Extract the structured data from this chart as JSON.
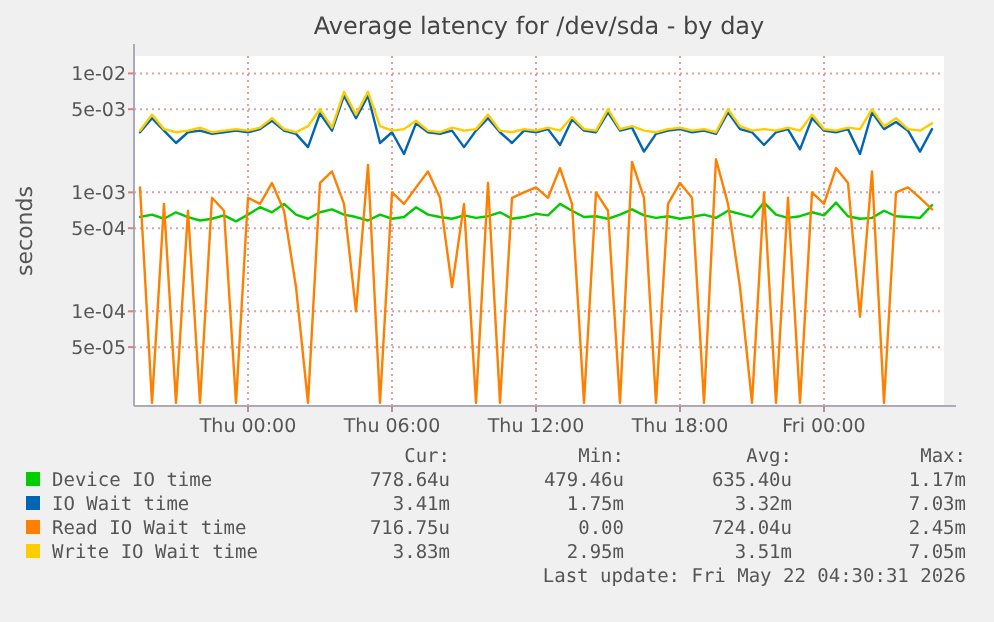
{
  "chart_data": {
    "type": "line",
    "title": "Average latency for /dev/sda - by day",
    "ylabel": "seconds",
    "log": "y",
    "grid": true,
    "legend": "bottom",
    "xlim": [
      "2026-05-20T19:15",
      "2026-05-22T05:00"
    ],
    "xticks": [
      {
        "value": "2026-05-21T00:00",
        "label": "Thu 00:00"
      },
      {
        "value": "2026-05-21T06:00",
        "label": "Thu 06:00"
      },
      {
        "value": "2026-05-21T12:00",
        "label": "Thu 12:00"
      },
      {
        "value": "2026-05-21T18:00",
        "label": "Thu 18:00"
      },
      {
        "value": "2026-05-22T00:00",
        "label": "Fri 00:00"
      }
    ],
    "ylim": [
      1.6e-05,
      0.014
    ],
    "yticks": [
      {
        "value": 5e-05,
        "label": "5e-05"
      },
      {
        "value": 0.0001,
        "label": "1e-04"
      },
      {
        "value": 0.0005,
        "label": "5e-04"
      },
      {
        "value": 0.001,
        "label": "1e-03"
      },
      {
        "value": 0.005,
        "label": "5e-03"
      },
      {
        "value": 0.01,
        "label": "1e-02"
      }
    ],
    "x": [
      "2026-05-20T19:30",
      "2026-05-20T20:00",
      "2026-05-20T20:30",
      "2026-05-20T21:00",
      "2026-05-20T21:30",
      "2026-05-20T22:00",
      "2026-05-20T22:30",
      "2026-05-20T23:00",
      "2026-05-20T23:30",
      "2026-05-21T00:00",
      "2026-05-21T00:30",
      "2026-05-21T01:00",
      "2026-05-21T01:30",
      "2026-05-21T02:00",
      "2026-05-21T02:30",
      "2026-05-21T03:00",
      "2026-05-21T03:30",
      "2026-05-21T04:00",
      "2026-05-21T04:30",
      "2026-05-21T05:00",
      "2026-05-21T05:30",
      "2026-05-21T06:00",
      "2026-05-21T06:30",
      "2026-05-21T07:00",
      "2026-05-21T07:30",
      "2026-05-21T08:00",
      "2026-05-21T08:30",
      "2026-05-21T09:00",
      "2026-05-21T09:30",
      "2026-05-21T10:00",
      "2026-05-21T10:30",
      "2026-05-21T11:00",
      "2026-05-21T11:30",
      "2026-05-21T12:00",
      "2026-05-21T12:30",
      "2026-05-21T13:00",
      "2026-05-21T13:30",
      "2026-05-21T14:00",
      "2026-05-21T14:30",
      "2026-05-21T15:00",
      "2026-05-21T15:30",
      "2026-05-21T16:00",
      "2026-05-21T16:30",
      "2026-05-21T17:00",
      "2026-05-21T17:30",
      "2026-05-21T18:00",
      "2026-05-21T18:30",
      "2026-05-21T19:00",
      "2026-05-21T19:30",
      "2026-05-21T20:00",
      "2026-05-21T20:30",
      "2026-05-21T21:00",
      "2026-05-21T21:30",
      "2026-05-21T22:00",
      "2026-05-21T22:30",
      "2026-05-21T23:00",
      "2026-05-21T23:30",
      "2026-05-22T00:00",
      "2026-05-22T00:30",
      "2026-05-22T01:00",
      "2026-05-22T01:30",
      "2026-05-22T02:00",
      "2026-05-22T02:30",
      "2026-05-22T03:00",
      "2026-05-22T03:30",
      "2026-05-22T04:00",
      "2026-05-22T04:30"
    ],
    "series": [
      {
        "name": "Device IO time",
        "color": "#00cc00",
        "values": [
          0.00062,
          0.00065,
          0.0006,
          0.00068,
          0.00062,
          0.00058,
          0.0006,
          0.00064,
          0.00057,
          0.00065,
          0.00075,
          0.00068,
          0.0008,
          0.00065,
          0.0006,
          0.00068,
          0.00072,
          0.00065,
          0.00062,
          0.00058,
          0.00065,
          0.0006,
          0.00062,
          0.00075,
          0.00065,
          0.00062,
          0.0006,
          0.00064,
          0.00061,
          0.00063,
          0.00068,
          0.0006,
          0.00062,
          0.00066,
          0.00064,
          0.0008,
          0.0007,
          0.00062,
          0.00063,
          0.0006,
          0.00065,
          0.00072,
          0.00064,
          0.00061,
          0.00063,
          0.0006,
          0.00062,
          0.00065,
          0.00061,
          0.0007,
          0.00066,
          0.00062,
          0.00082,
          0.00065,
          0.00061,
          0.00063,
          0.00068,
          0.00064,
          0.00082,
          0.00063,
          0.0006,
          0.00061,
          0.0007,
          0.00063,
          0.00062,
          0.00061,
          0.00078
        ]
      },
      {
        "name": "IO Wait time",
        "color": "#0066b3",
        "values": [
          0.0032,
          0.0042,
          0.0033,
          0.0026,
          0.0032,
          0.0033,
          0.0031,
          0.0032,
          0.0033,
          0.0032,
          0.0034,
          0.004,
          0.0033,
          0.0031,
          0.0024,
          0.0046,
          0.0033,
          0.0065,
          0.0042,
          0.0065,
          0.0026,
          0.0032,
          0.0021,
          0.0038,
          0.0032,
          0.0031,
          0.0033,
          0.0024,
          0.0033,
          0.0042,
          0.0032,
          0.0026,
          0.0033,
          0.0032,
          0.0034,
          0.0025,
          0.0041,
          0.0033,
          0.0032,
          0.0047,
          0.0033,
          0.0035,
          0.0022,
          0.0031,
          0.0033,
          0.0034,
          0.0032,
          0.0033,
          0.0031,
          0.0047,
          0.0034,
          0.0032,
          0.0025,
          0.0032,
          0.0034,
          0.0023,
          0.0042,
          0.0033,
          0.0032,
          0.0034,
          0.0021,
          0.0047,
          0.0034,
          0.0039,
          0.0033,
          0.0022,
          0.0034
        ]
      },
      {
        "name": "Read IO Wait time",
        "color": "#ff8000",
        "values": [
          0.0011,
          1.7e-05,
          0.0008,
          1.7e-05,
          0.0007,
          1.7e-05,
          0.0009,
          0.0007,
          1.7e-05,
          0.0009,
          0.0008,
          0.0012,
          0.0007,
          0.00016,
          1.7e-05,
          0.0012,
          0.0015,
          0.0008,
          0.0001,
          0.0017,
          1.7e-05,
          0.001,
          0.0008,
          0.0011,
          0.0015,
          0.0009,
          0.00016,
          0.0008,
          1.7e-05,
          0.0012,
          1.7e-05,
          0.0009,
          0.001,
          0.0011,
          0.0009,
          0.0016,
          0.0008,
          1.7e-05,
          0.001,
          0.0007,
          1.7e-05,
          0.0018,
          0.0009,
          1.7e-05,
          0.0008,
          0.0012,
          0.0009,
          1.7e-05,
          0.0019,
          0.0008,
          0.00016,
          1.7e-05,
          0.001,
          1.7e-05,
          0.0009,
          1.7e-05,
          0.001,
          0.0008,
          0.0016,
          0.0012,
          9e-05,
          0.0015,
          1.7e-05,
          0.001,
          0.0011,
          0.0009,
          0.00072
        ]
      },
      {
        "name": "Write IO Wait time",
        "color": "#ffcc00",
        "values": [
          0.0033,
          0.0045,
          0.0034,
          0.0032,
          0.0033,
          0.0035,
          0.0032,
          0.0033,
          0.0034,
          0.0033,
          0.0035,
          0.0042,
          0.0034,
          0.0032,
          0.0036,
          0.005,
          0.0035,
          0.007,
          0.0045,
          0.007,
          0.0036,
          0.0033,
          0.0034,
          0.004,
          0.0033,
          0.0032,
          0.0035,
          0.0033,
          0.0034,
          0.0045,
          0.0033,
          0.0032,
          0.0034,
          0.0033,
          0.0035,
          0.0033,
          0.0043,
          0.0034,
          0.0033,
          0.005,
          0.0034,
          0.0036,
          0.0033,
          0.0032,
          0.0034,
          0.0035,
          0.0033,
          0.0034,
          0.0032,
          0.005,
          0.0036,
          0.0033,
          0.0034,
          0.0033,
          0.0035,
          0.0033,
          0.0045,
          0.0034,
          0.0033,
          0.0035,
          0.0034,
          0.005,
          0.0036,
          0.0042,
          0.0034,
          0.0033,
          0.0038
        ]
      }
    ],
    "annotations": [
      "Cur:",
      "Min:",
      "Avg:",
      "Max:",
      "778.64u",
      "479.46u",
      "635.40u",
      "1.17m",
      "3.41m",
      "1.75m",
      "3.32m",
      "7.03m",
      "716.75u",
      "0.00",
      "724.04u",
      "2.45m",
      "3.83m",
      "2.95m",
      "3.51m",
      "7.05m",
      "Last update: Fri May 22 04:30:31 2026"
    ]
  }
}
